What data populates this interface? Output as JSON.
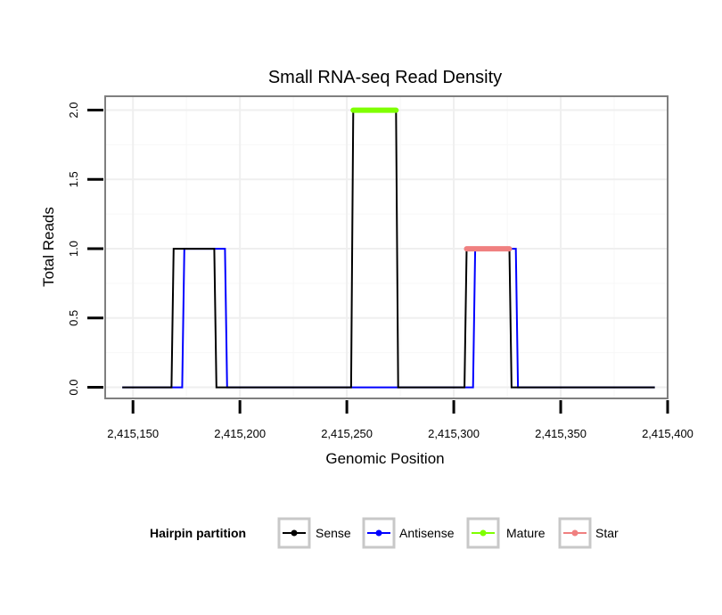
{
  "chart_data": {
    "type": "line",
    "title": "Small RNA-seq Read Density",
    "xlabel": "Genomic Position",
    "ylabel": "Total Reads",
    "xlim": [
      2415137,
      2415400
    ],
    "ylim": [
      -0.08,
      2.1
    ],
    "xticks": [
      2415150,
      2415200,
      2415250,
      2415300,
      2415350,
      2415400
    ],
    "xtick_labels": [
      "2,415,150",
      "2,415,200",
      "2,415,250",
      "2,415,300",
      "2,415,350",
      "2,415,400"
    ],
    "yticks": [
      0.0,
      0.5,
      1.0,
      1.5,
      2.0
    ],
    "ytick_labels": [
      "0.0",
      "0.5",
      "1.0",
      "1.5",
      "2.0"
    ],
    "grid": true,
    "legend": {
      "title": "Hairpin partition",
      "placement": "bottom",
      "entries": [
        "Sense",
        "Antisense",
        "Mature",
        "Star"
      ]
    },
    "series": [
      {
        "name": "Sense",
        "color": "#000000",
        "points": [
          [
            2415145,
            0
          ],
          [
            2415168,
            0
          ],
          [
            2415169,
            1
          ],
          [
            2415188,
            1
          ],
          [
            2415189,
            0
          ],
          [
            2415252,
            0
          ],
          [
            2415253,
            2
          ],
          [
            2415273,
            2
          ],
          [
            2415274,
            0
          ],
          [
            2415305,
            0
          ],
          [
            2415306,
            1
          ],
          [
            2415326,
            1
          ],
          [
            2415327,
            0
          ],
          [
            2415394,
            0
          ]
        ]
      },
      {
        "name": "Antisense",
        "color": "#0000ff",
        "points": [
          [
            2415145,
            0
          ],
          [
            2415173,
            0
          ],
          [
            2415174,
            1
          ],
          [
            2415193,
            1
          ],
          [
            2415194,
            0
          ],
          [
            2415309,
            0
          ],
          [
            2415310,
            1
          ],
          [
            2415329,
            1
          ],
          [
            2415330,
            0
          ],
          [
            2415394,
            0
          ]
        ]
      },
      {
        "name": "Mature",
        "color": "#7fff00",
        "points": [
          [
            2415253,
            2
          ],
          [
            2415273,
            2
          ]
        ]
      },
      {
        "name": "Star",
        "color": "#f08080",
        "points": [
          [
            2415306,
            1
          ],
          [
            2415326,
            1
          ]
        ]
      }
    ]
  }
}
